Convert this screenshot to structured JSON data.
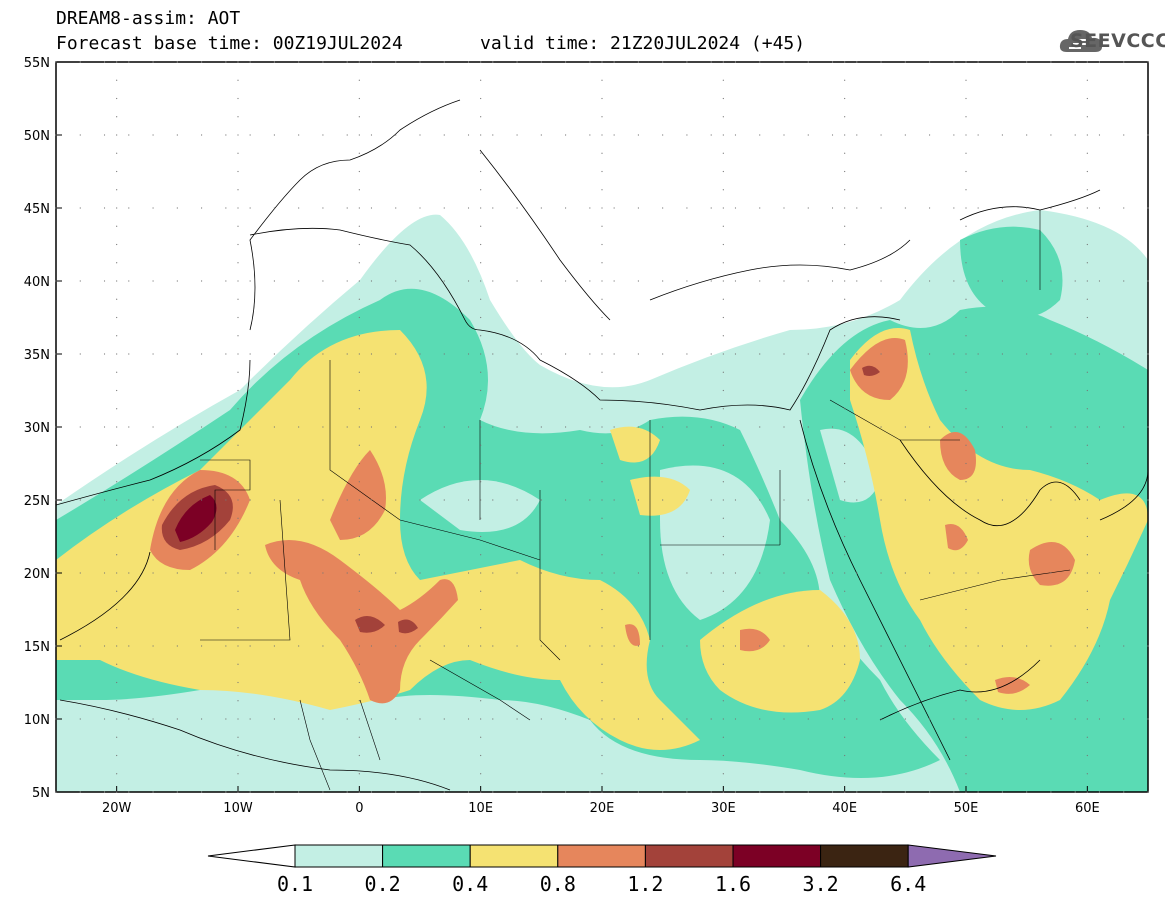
{
  "header": {
    "line1": "DREAM8-assim: AOT",
    "line2": "Forecast base time: 00Z19JUL2024",
    "line3": "valid time: 21Z20JUL2024 (+45)"
  },
  "logo": {
    "text": "SEEVCCC",
    "icon": "cloud-icon",
    "color": "#555555"
  },
  "map": {
    "lat_ticks": [
      "55N",
      "50N",
      "45N",
      "40N",
      "35N",
      "30N",
      "25N",
      "20N",
      "15N",
      "10N",
      "5N"
    ],
    "lon_ticks": [
      "20W",
      "10W",
      "0",
      "10E",
      "20E",
      "30E",
      "40E",
      "50E",
      "60E"
    ],
    "lon_range": [
      -25,
      65
    ],
    "lat_range": [
      5,
      55
    ]
  },
  "colorbar": {
    "labels": [
      "0.1",
      "0.2",
      "0.4",
      "0.8",
      "1.2",
      "1.6",
      "3.2",
      "6.4"
    ],
    "colors": [
      "#ffffff",
      "#c3efe4",
      "#5adbb4",
      "#f5e272",
      "#e6865c",
      "#a3423a",
      "#7c0025",
      "#3b2412",
      "#8e6bb0"
    ]
  },
  "palette": {
    "c1": "#c3efe4",
    "c2": "#5adbb4",
    "c3": "#f5e272",
    "c4": "#e6865c",
    "c5": "#a3423a",
    "c6": "#7c0025"
  }
}
